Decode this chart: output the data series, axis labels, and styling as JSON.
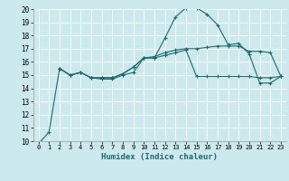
{
  "xlabel": "Humidex (Indice chaleur)",
  "bg_color": "#cce9ed",
  "line_color": "#1a6b6e",
  "grid_color": "#ffffff",
  "xlim": [
    -0.5,
    23.5
  ],
  "ylim": [
    10,
    20
  ],
  "yticks": [
    10,
    11,
    12,
    13,
    14,
    15,
    16,
    17,
    18,
    19,
    20
  ],
  "xticks": [
    0,
    1,
    2,
    3,
    4,
    5,
    6,
    7,
    8,
    9,
    10,
    11,
    12,
    13,
    14,
    15,
    16,
    17,
    18,
    19,
    20,
    21,
    22,
    23
  ],
  "series": [
    {
      "x": [
        0,
        1,
        2,
        3,
        4,
        5,
        6,
        7,
        8,
        9,
        10,
        11,
        12,
        13,
        14,
        15,
        16,
        17,
        18,
        19,
        20,
        21,
        22,
        23
      ],
      "y": [
        9.8,
        10.7,
        15.5,
        15.0,
        15.2,
        14.8,
        14.7,
        14.7,
        15.0,
        15.2,
        16.3,
        16.3,
        17.8,
        19.4,
        20.1,
        20.1,
        19.6,
        18.8,
        17.3,
        17.4,
        16.6,
        14.4,
        14.4,
        14.9
      ]
    },
    {
      "x": [
        2,
        3,
        4,
        5,
        6,
        7,
        8,
        9,
        10,
        11,
        12,
        13,
        14,
        15,
        16,
        17,
        18,
        19,
        20,
        21,
        22,
        23
      ],
      "y": [
        15.5,
        15.0,
        15.2,
        14.8,
        14.8,
        14.8,
        15.1,
        15.6,
        16.3,
        16.4,
        16.7,
        16.9,
        17.0,
        17.0,
        17.1,
        17.2,
        17.2,
        17.2,
        16.8,
        16.8,
        16.7,
        14.9
      ]
    },
    {
      "x": [
        2,
        3,
        4,
        5,
        6,
        7,
        8,
        9,
        10,
        11,
        12,
        13,
        14,
        15,
        16,
        17,
        18,
        19,
        20,
        21,
        22,
        23
      ],
      "y": [
        15.5,
        15.0,
        15.2,
        14.8,
        14.8,
        14.8,
        15.1,
        15.6,
        16.3,
        16.3,
        16.5,
        16.7,
        16.9,
        14.9,
        14.9,
        14.9,
        14.9,
        14.9,
        14.9,
        14.8,
        14.8,
        14.9
      ]
    }
  ]
}
